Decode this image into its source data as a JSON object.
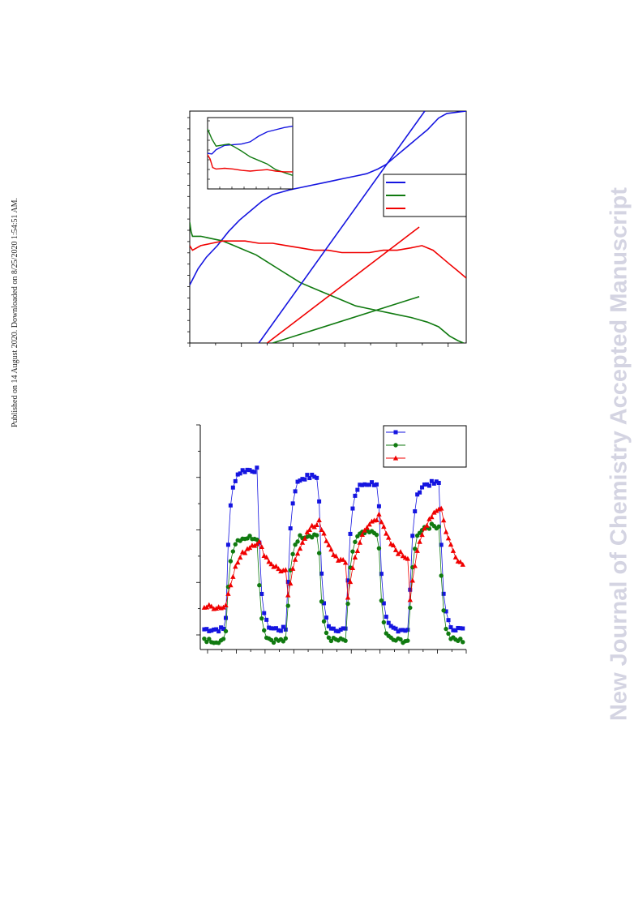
{
  "side_note": "Published on 14 August 2020. Downloaded on 8/25/2020 1:54:51 AM.",
  "watermark": "New Journal of Chemistry Accepted Manuscript",
  "colors": {
    "blue": "#1515e0",
    "green": "#107a10",
    "red": "#f00000"
  },
  "chart_data": [
    {
      "type": "line",
      "title": "",
      "xlabel": "",
      "ylabel": "",
      "xlim": [
        0,
        100
      ],
      "ylim": [
        0,
        100
      ],
      "legend": "right",
      "series": [
        {
          "name": "",
          "color": "blue",
          "x": [
            0,
            3,
            6,
            10,
            14,
            18,
            22,
            26,
            30,
            33,
            36,
            40,
            44,
            48,
            52,
            56,
            60,
            64,
            68,
            71,
            74,
            78,
            82,
            86,
            90,
            93,
            100
          ],
          "y": [
            25,
            32,
            37,
            42,
            48,
            53,
            57,
            61,
            64,
            65,
            66,
            67,
            68,
            69,
            70,
            71,
            72,
            73,
            75,
            77,
            80,
            84,
            88,
            92,
            97,
            99,
            100
          ]
        },
        {
          "name": "",
          "color": "green",
          "x": [
            0,
            0.5,
            1,
            4,
            8,
            12,
            16,
            20,
            24,
            28,
            32,
            36,
            40,
            44,
            48,
            52,
            56,
            60,
            64,
            68,
            72,
            76,
            80,
            83,
            86,
            90,
            94,
            97,
            99
          ],
          "y": [
            52,
            48,
            46,
            46,
            45,
            44,
            42,
            40,
            38,
            35,
            32,
            29,
            26,
            24,
            22,
            20,
            18,
            16,
            15,
            14,
            13,
            12,
            11,
            10,
            9,
            7,
            3,
            1,
            0
          ]
        },
        {
          "name": "",
          "color": "red",
          "x": [
            0,
            1,
            4,
            8,
            12,
            16,
            20,
            25,
            30,
            35,
            40,
            45,
            50,
            55,
            60,
            65,
            70,
            75,
            80,
            84,
            88,
            91,
            94,
            97,
            100
          ],
          "y": [
            42,
            40,
            42,
            43,
            44,
            44,
            44,
            43,
            43,
            42,
            41,
            40,
            40,
            39,
            39,
            39,
            40,
            40,
            41,
            42,
            40,
            37,
            34,
            31,
            28
          ]
        }
      ],
      "fit_lines": [
        {
          "color": "blue",
          "x": [
            25,
            85
          ],
          "y": [
            0,
            100
          ]
        },
        {
          "color": "red",
          "x": [
            28,
            83
          ],
          "y": [
            0,
            50
          ]
        },
        {
          "color": "green",
          "x": [
            30,
            83
          ],
          "y": [
            0,
            20
          ]
        }
      ],
      "inset": {
        "series": [
          {
            "color": "blue",
            "x": [
              0,
              5,
              10,
              20,
              30,
              40,
              50,
              60,
              70,
              80,
              90,
              100
            ],
            "y": [
              50,
              49,
              55,
              61,
              62,
              63,
              66,
              74,
              80,
              83,
              86,
              88
            ]
          },
          {
            "color": "green",
            "x": [
              0,
              5,
              10,
              20,
              25,
              30,
              40,
              50,
              60,
              70,
              80,
              90,
              100
            ],
            "y": [
              84,
              70,
              60,
              62,
              63,
              60,
              53,
              45,
              40,
              35,
              27,
              23,
              19
            ]
          },
          {
            "color": "red",
            "x": [
              0,
              3,
              6,
              10,
              20,
              30,
              40,
              50,
              60,
              70,
              80,
              90,
              100
            ],
            "y": [
              48,
              42,
              30,
              28,
              29,
              28,
              26,
              25,
              26,
              27,
              25,
              24,
              24
            ]
          }
        ]
      }
    },
    {
      "type": "scatter",
      "title": "",
      "xlabel": "",
      "ylabel": "",
      "xlim": [
        0,
        100
      ],
      "ylim": [
        0,
        100
      ],
      "legend": "top-right",
      "cycles": [
        {
          "on": 9.5,
          "off": 21.5
        },
        {
          "on": 32.5,
          "off": 44.5
        },
        {
          "on": 55,
          "off": 67
        },
        {
          "on": 78.5,
          "off": 90
        }
      ],
      "series": [
        {
          "name": "",
          "color": "blue",
          "marker": "square",
          "baseline": 9,
          "plateau": [
            80,
            77,
            74,
            74
          ],
          "tail": 6
        },
        {
          "name": "",
          "color": "green",
          "marker": "circle",
          "baseline": 4,
          "plateau": [
            50,
            51,
            52,
            55
          ],
          "tail": 3
        },
        {
          "name": "",
          "color": "red",
          "marker": "triangle",
          "baseline": 19,
          "plateau": [
            50,
            59,
            62,
            67
          ],
          "tail": 33
        }
      ]
    }
  ]
}
